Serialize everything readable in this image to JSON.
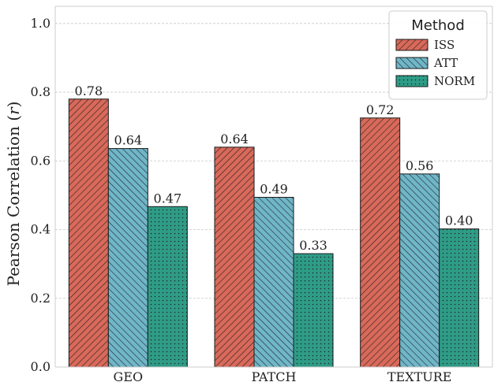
{
  "chart_data": {
    "type": "bar",
    "categories": [
      "GEO",
      "PATCH",
      "TEXTURE"
    ],
    "series": [
      {
        "name": "ISS",
        "values": [
          0.78,
          0.64,
          0.725
        ],
        "labels": [
          "0.78",
          "0.64",
          "0.72"
        ],
        "color": "#d9695a",
        "pattern": "hatch-diag"
      },
      {
        "name": "ATT",
        "values": [
          0.636,
          0.494,
          0.562
        ],
        "labels": [
          "0.64",
          "0.49",
          "0.56"
        ],
        "color": "#6fb6c8",
        "pattern": "hatch-back"
      },
      {
        "name": "NORM",
        "values": [
          0.467,
          0.33,
          0.402
        ],
        "labels": [
          "0.47",
          "0.33",
          "0.40"
        ],
        "color": "#2e9c86",
        "pattern": "dots"
      }
    ],
    "ylabel": "Pearson Correlation (r)",
    "ylabel_parts": [
      "Pearson Correlation (",
      "r",
      ")"
    ],
    "ylim": [
      0,
      1.05
    ],
    "yticks": [
      "0.0",
      "0.2",
      "0.4",
      "0.6",
      "0.8",
      "1.0"
    ],
    "grid": true,
    "legend": {
      "title": "Method",
      "placement": "top-right"
    }
  }
}
